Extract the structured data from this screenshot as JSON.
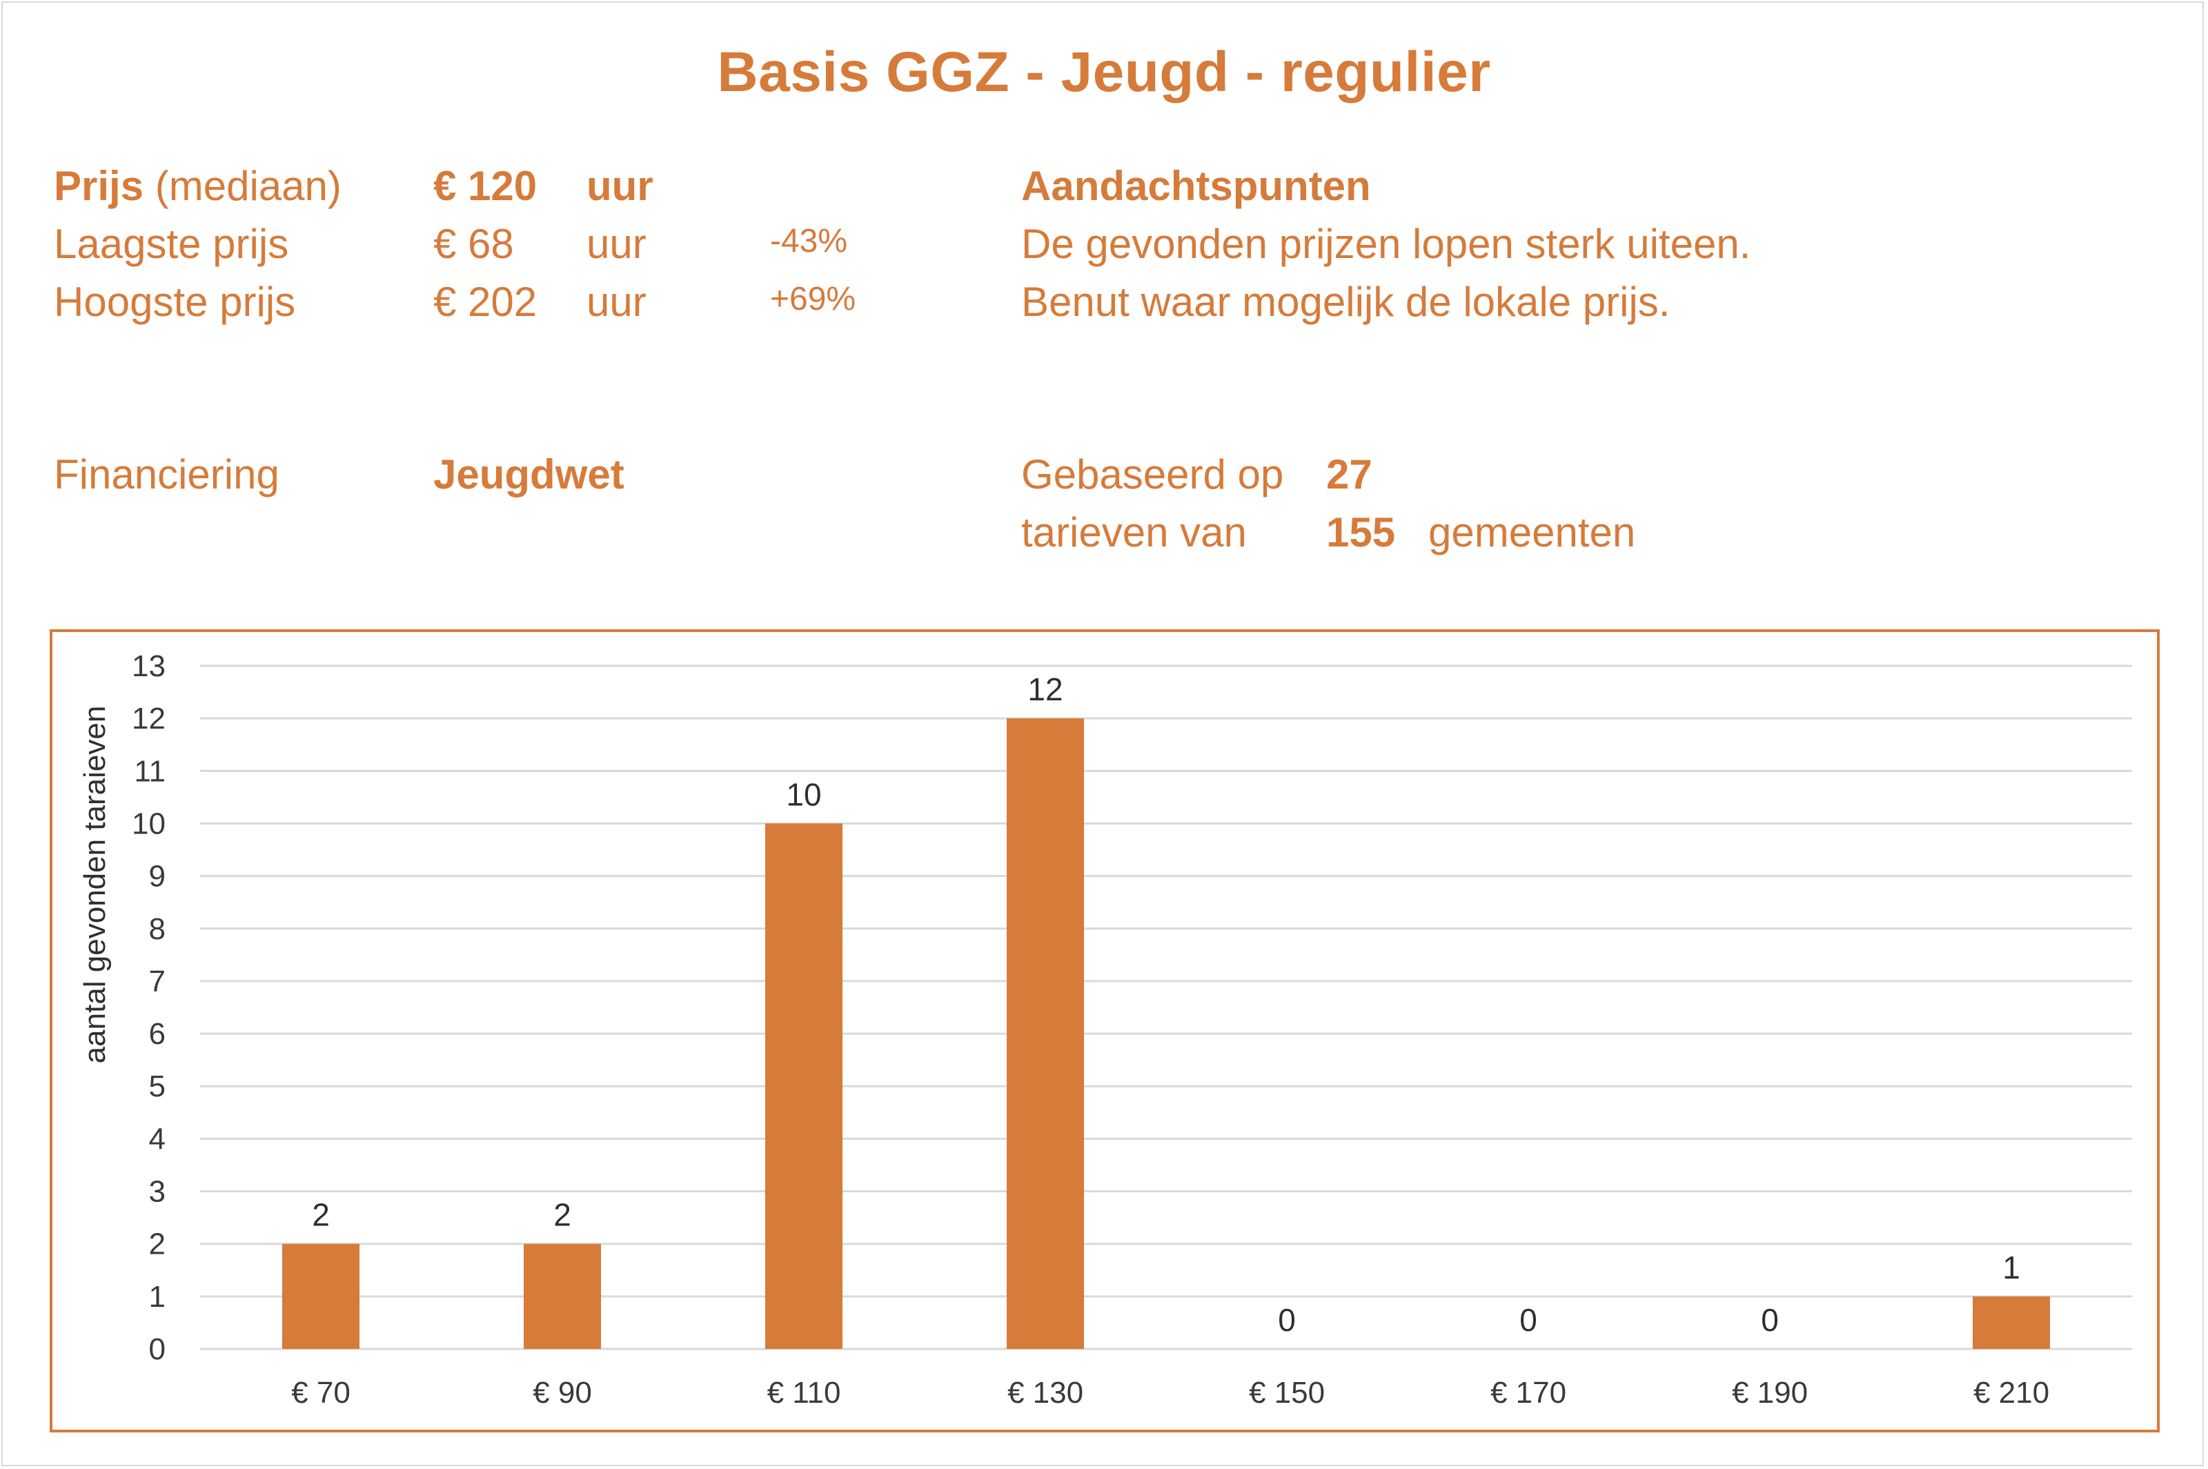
{
  "header": {
    "title": "Basis GGZ - Jeugd - regulier"
  },
  "prices": {
    "median_label_bold": "Prijs",
    "median_label_rest": "(mediaan)",
    "median_value": "€ 120",
    "median_unit": "uur",
    "low_label": "Laagste prijs",
    "low_value": "€ 68",
    "low_unit": "uur",
    "low_pct": "-43%",
    "high_label": "Hoogste prijs",
    "high_value": "€ 202",
    "high_unit": "uur",
    "high_pct": "+69%"
  },
  "notes": {
    "heading": "Aandachtspunten",
    "line1": "De gevonden prijzen lopen sterk uiteen.",
    "line2": "Benut waar mogelijk de lokale prijs."
  },
  "financing": {
    "label": "Financiering",
    "value": "Jeugdwet"
  },
  "basis": {
    "line1_text": "Gebaseerd op",
    "line1_value": "27",
    "line2_text": "tarieven van",
    "line2_value": "155",
    "line2_suffix": "gemeenten"
  },
  "chart_data": {
    "type": "bar",
    "categories": [
      "€ 70",
      "€ 90",
      "€ 110",
      "€ 130",
      "€ 150",
      "€ 170",
      "€ 190",
      "€ 210"
    ],
    "values": [
      2,
      2,
      10,
      12,
      0,
      0,
      0,
      1
    ],
    "ylabel": "aantal gevonden taraieven",
    "xlabel": "",
    "ylim": [
      0,
      13
    ],
    "yticks": [
      "0",
      "1",
      "2",
      "3",
      "4",
      "5",
      "6",
      "7",
      "8",
      "9",
      "10",
      "11",
      "12",
      "13"
    ],
    "grid": true,
    "bar_color": "#d67b3a",
    "grid_color": "#d9d9d9",
    "border_color": "#d67b3a"
  }
}
